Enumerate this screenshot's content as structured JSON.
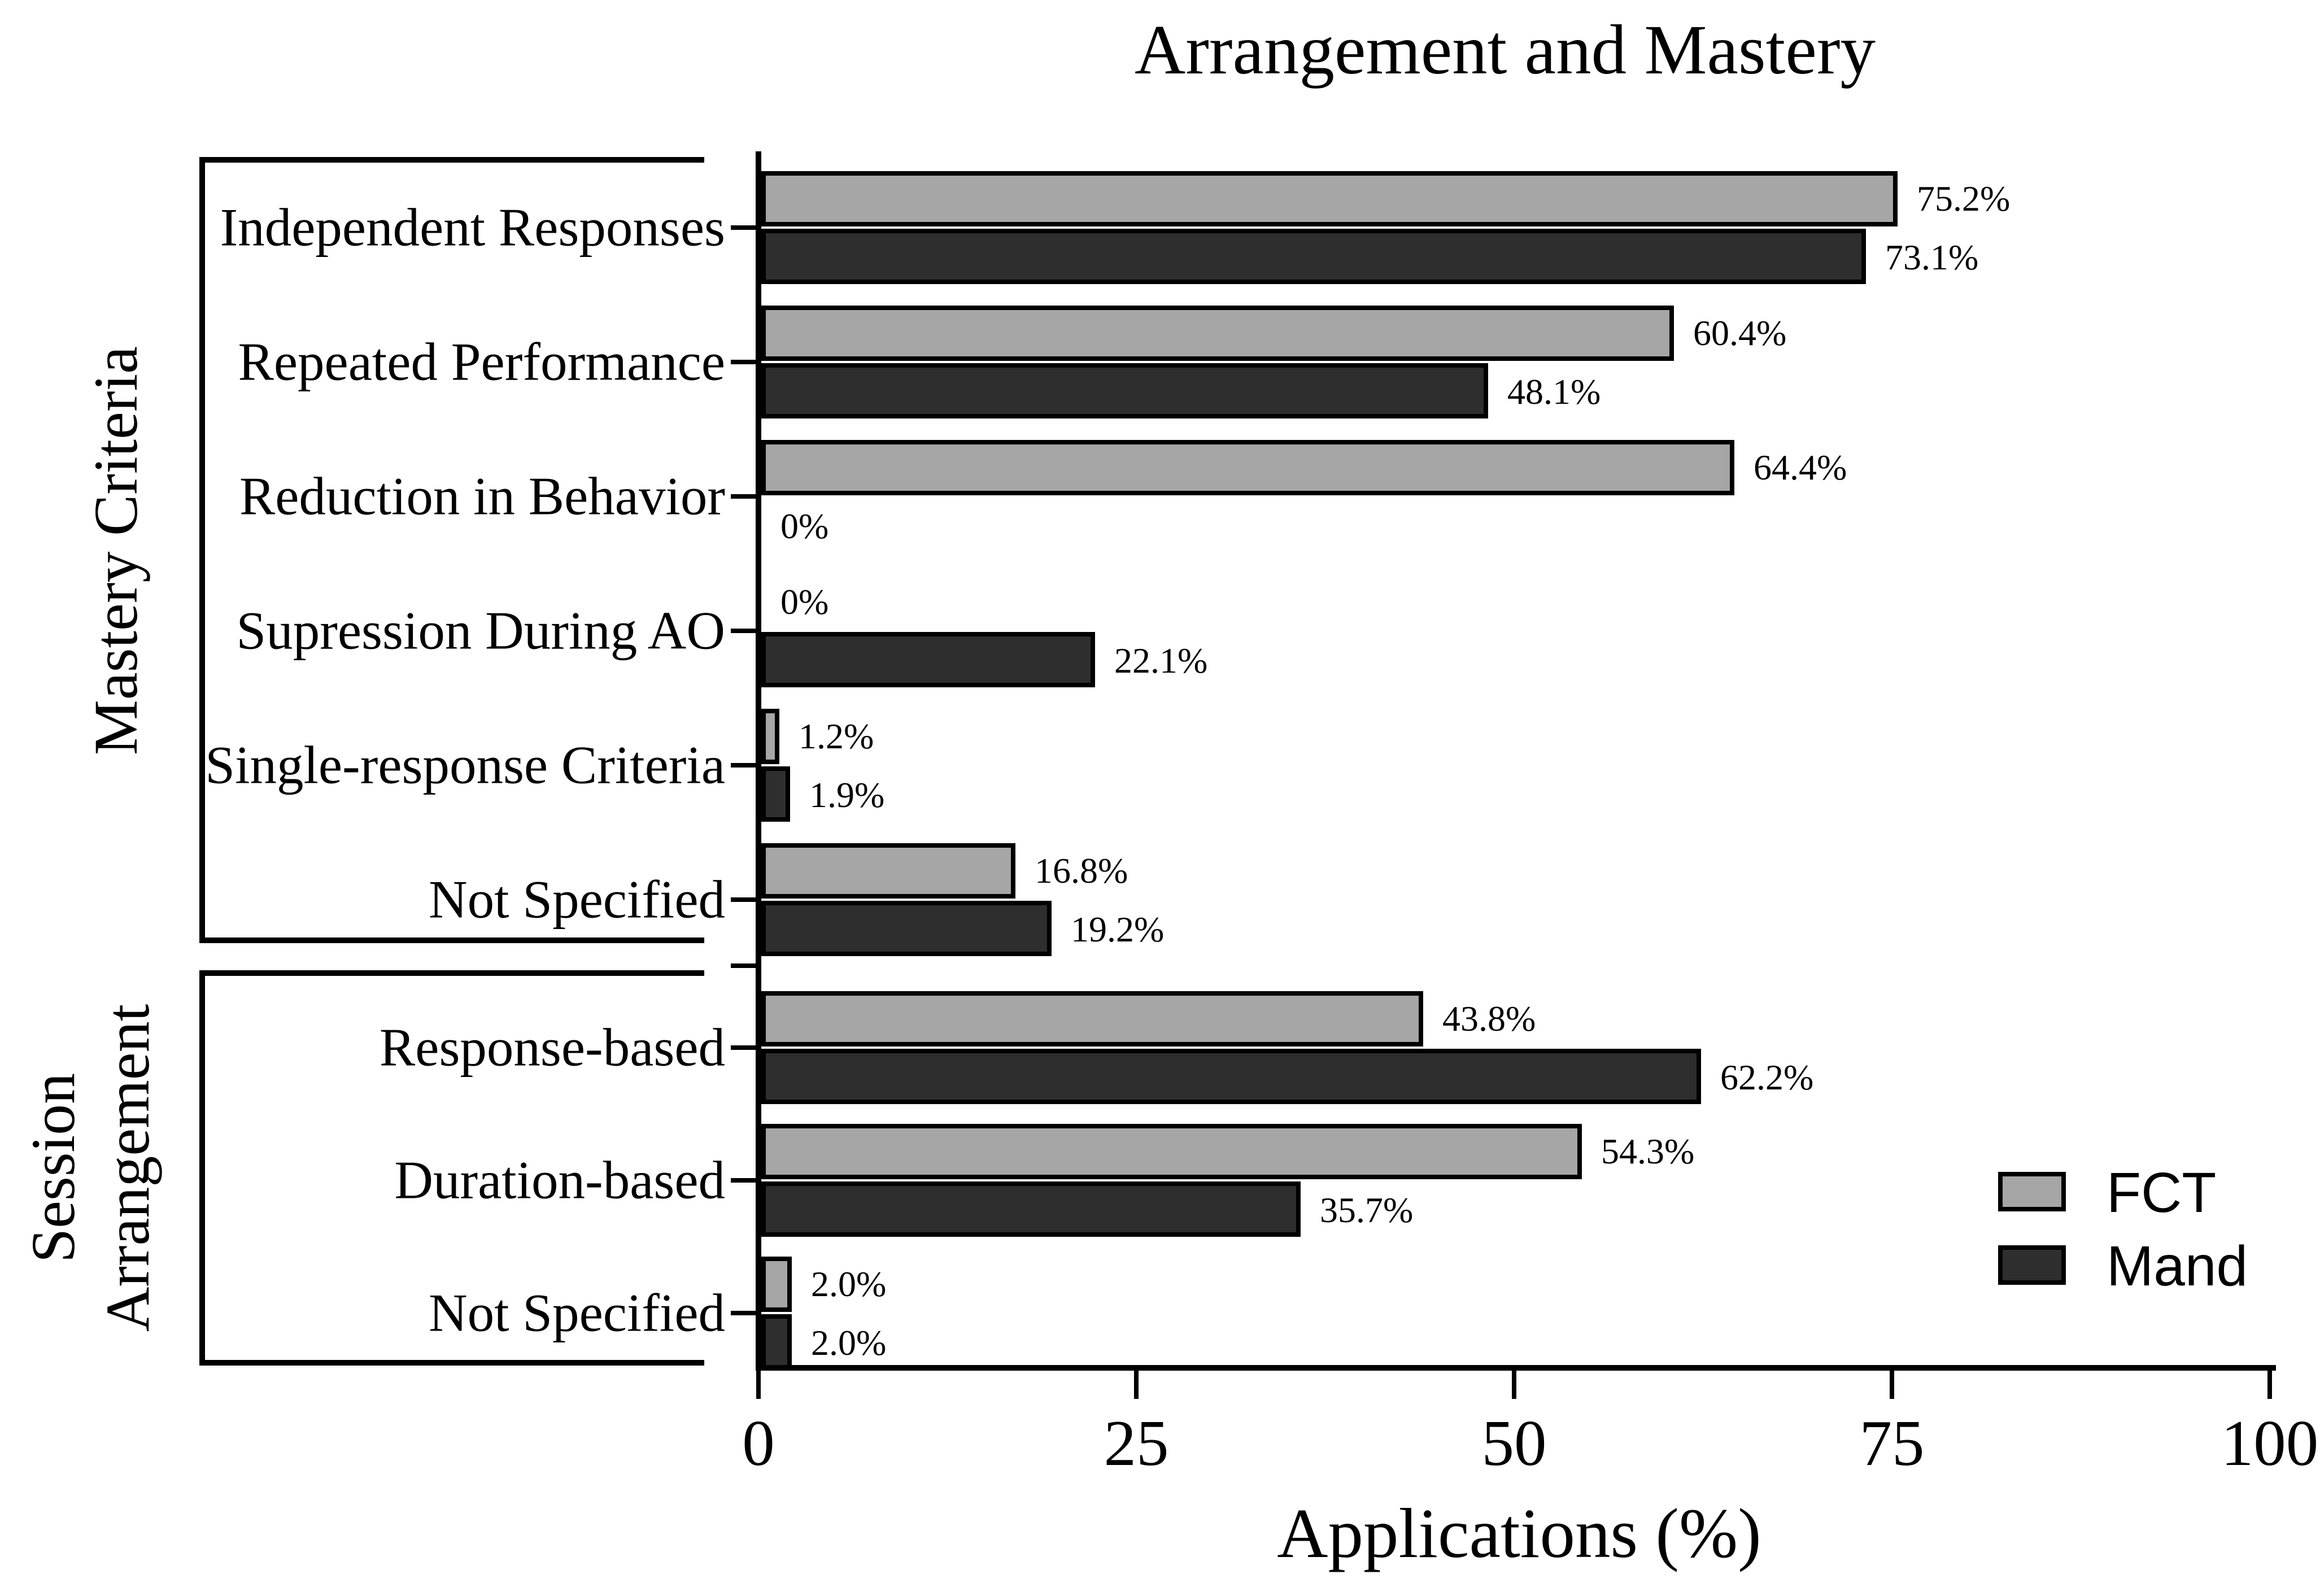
{
  "chart_data": {
    "type": "bar",
    "orientation": "horizontal",
    "title": "Arrangement and Mastery",
    "xlabel": "Applications (%)",
    "xlim": [
      0,
      100
    ],
    "grid": false,
    "legend_position": "bottom-right",
    "xticks": [
      {
        "value": 0,
        "label": "0"
      },
      {
        "value": 25,
        "label": "25"
      },
      {
        "value": 50,
        "label": "50"
      },
      {
        "value": 75,
        "label": "75"
      },
      {
        "value": 100,
        "label": "100"
      }
    ],
    "series": [
      {
        "name": "FCT",
        "color": "#a6a6a6"
      },
      {
        "name": "Mand",
        "color": "#2e2e2e"
      }
    ],
    "groups": [
      {
        "id": "mastery",
        "label": "Mastery Criteria"
      },
      {
        "id": "session",
        "label": "Session Arrangement"
      }
    ],
    "rows": [
      {
        "group": "mastery",
        "category": "Independent Responses",
        "FCT": 75.2,
        "Mand": 73.1,
        "FCT_label": "75.2%",
        "Mand_label": "73.1%"
      },
      {
        "group": "mastery",
        "category": "Repeated Performance",
        "FCT": 60.4,
        "Mand": 48.1,
        "FCT_label": "60.4%",
        "Mand_label": "48.1%"
      },
      {
        "group": "mastery",
        "category": "Reduction in Behavior",
        "FCT": 64.4,
        "Mand": 0,
        "FCT_label": "64.4%",
        "Mand_label": "0%"
      },
      {
        "group": "mastery",
        "category": "Supression During AO",
        "FCT": 0,
        "Mand": 22.1,
        "FCT_label": "0%",
        "Mand_label": "22.1%"
      },
      {
        "group": "mastery",
        "category": "Single-response Criteria",
        "FCT": 1.2,
        "Mand": 1.9,
        "FCT_label": "1.2%",
        "Mand_label": "1.9%"
      },
      {
        "group": "mastery",
        "category": "Not Specified",
        "FCT": 16.8,
        "Mand": 19.2,
        "FCT_label": "16.8%",
        "Mand_label": "19.2%"
      },
      {
        "group": "session",
        "category": "Response-based",
        "FCT": 43.8,
        "Mand": 62.2,
        "FCT_label": "43.8%",
        "Mand_label": "62.2%"
      },
      {
        "group": "session",
        "category": "Duration-based",
        "FCT": 54.3,
        "Mand": 35.7,
        "FCT_label": "54.3%",
        "Mand_label": "35.7%"
      },
      {
        "group": "session",
        "category": "Not Specified",
        "FCT": 2.0,
        "Mand": 2.0,
        "FCT_label": "2.0%",
        "Mand_label": "2.0%"
      }
    ]
  }
}
